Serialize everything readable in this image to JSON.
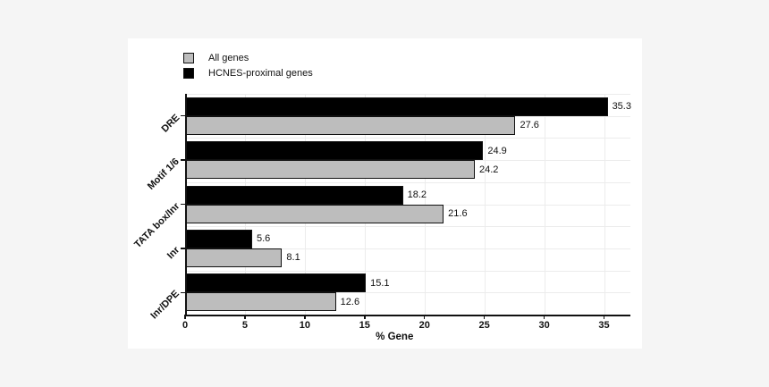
{
  "colors": {
    "page_bg": "#f5f5f5",
    "panel_bg": "#ffffff",
    "grid": "#ececec",
    "axis": "#111111",
    "all_genes_fill": "#bdbdbd",
    "hcnes_fill": "#000000"
  },
  "legend": {
    "items": [
      {
        "label": "All genes",
        "color": "#bdbdbd"
      },
      {
        "label": "HCNES-proximal genes",
        "color": "#000000"
      }
    ]
  },
  "chart_data": {
    "type": "bar",
    "orientation": "horizontal",
    "title": "",
    "xlabel": "% Gene",
    "ylabel": "",
    "categories": [
      "DRE",
      "Motif 1/6",
      "TATA box/Inr",
      "Inr",
      "Inr/DPE"
    ],
    "series": [
      {
        "name": "HCNES-proximal genes",
        "color": "#000000",
        "values": [
          35.3,
          24.9,
          18.2,
          5.6,
          15.1
        ]
      },
      {
        "name": "All genes",
        "color": "#bdbdbd",
        "values": [
          27.6,
          24.2,
          21.6,
          8.1,
          12.6
        ]
      }
    ],
    "bar_value_labels": [
      "35.3",
      "24.9",
      "18.2",
      "5.6",
      "15.1",
      "27.6",
      "24.2",
      "21.6",
      "8.1",
      "12.6"
    ],
    "xlim": [
      0,
      37.2
    ],
    "xticks": [
      0,
      5,
      10,
      15,
      20,
      25,
      30,
      35
    ],
    "grid": "major-vertical-and-horizontal",
    "legend_position": "top-left-above-plot"
  }
}
